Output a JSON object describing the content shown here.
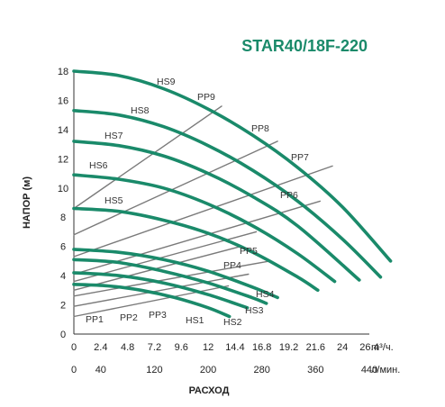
{
  "chart_data": {
    "type": "line",
    "title": "STAR40/18F-220",
    "ylabel": "НАПОР (м)",
    "xlabel": "РАСХОД",
    "x_unit_top": "m³/ч.",
    "x_unit_bottom": "л/мин.",
    "ylim": [
      0,
      18
    ],
    "yticks": [
      0,
      2,
      4,
      6,
      8,
      10,
      12,
      14,
      16,
      18
    ],
    "xlim": [
      0,
      26.4
    ],
    "xticks_top": [
      "0",
      "2.4",
      "4.8",
      "7.2",
      "9.6",
      "12",
      "14.4",
      "16.8",
      "19.2",
      "21.6",
      "24",
      "26.4"
    ],
    "xticks_bottom": [
      "0",
      "40",
      "120",
      "200",
      "280",
      "360",
      "440"
    ],
    "xticks_bottom_values": [
      0,
      2.4,
      7.2,
      12,
      16.8,
      21.6,
      26.4
    ],
    "grid": false,
    "colors": {
      "pump_curve": "#1a8a6a",
      "system_curve": "#7a7a7a",
      "title": "#1a8a6a",
      "text": "#222222"
    },
    "series": [
      {
        "name": "HS1",
        "kind": "pump",
        "x": [
          0,
          3,
          6,
          9,
          12,
          13.9
        ],
        "y": [
          3.4,
          3.3,
          3.0,
          2.5,
          1.8,
          1.2
        ]
      },
      {
        "name": "HS2",
        "kind": "pump",
        "x": [
          0,
          4,
          8,
          12,
          15.5
        ],
        "y": [
          4.2,
          4.0,
          3.5,
          2.7,
          1.8
        ]
      },
      {
        "name": "HS3",
        "kind": "pump",
        "x": [
          0,
          4,
          8,
          12,
          15.9,
          17.2
        ],
        "y": [
          5.1,
          4.9,
          4.3,
          3.5,
          2.5,
          2.1
        ]
      },
      {
        "name": "HS4",
        "kind": "pump",
        "x": [
          0,
          4,
          8,
          12,
          16,
          18.2
        ],
        "y": [
          5.8,
          5.6,
          5.1,
          4.3,
          3.2,
          2.5
        ]
      },
      {
        "name": "HS5",
        "kind": "pump",
        "x": [
          0,
          4,
          8,
          12,
          16,
          20,
          21.8
        ],
        "y": [
          8.6,
          8.4,
          7.8,
          6.9,
          5.6,
          3.9,
          3.0
        ]
      },
      {
        "name": "HS6",
        "kind": "pump",
        "x": [
          0,
          4,
          8,
          12,
          16,
          20,
          23.3
        ],
        "y": [
          10.9,
          10.6,
          10.0,
          8.9,
          7.4,
          5.5,
          3.6
        ]
      },
      {
        "name": "HS7",
        "kind": "pump",
        "x": [
          0,
          4,
          8,
          12,
          16,
          20,
          25.5
        ],
        "y": [
          13.2,
          12.9,
          12.2,
          11.0,
          9.4,
          7.4,
          3.7
        ]
      },
      {
        "name": "HS8",
        "kind": "pump",
        "x": [
          0,
          4,
          8,
          12,
          16,
          20,
          24,
          27.4
        ],
        "y": [
          15.3,
          15.0,
          14.2,
          12.9,
          11.2,
          9.1,
          6.5,
          3.9
        ]
      },
      {
        "name": "HS9",
        "kind": "pump",
        "x": [
          0,
          4,
          8,
          12,
          16,
          20,
          24,
          28.3
        ],
        "y": [
          18.0,
          17.7,
          16.8,
          15.4,
          13.6,
          11.4,
          8.7,
          5.0
        ]
      },
      {
        "name": "PP1",
        "kind": "system",
        "x": [
          0,
          13.8
        ],
        "y": [
          1.2,
          3.3
        ]
      },
      {
        "name": "PP2",
        "kind": "system",
        "x": [
          0,
          15.6
        ],
        "y": [
          1.9,
          4.1
        ]
      },
      {
        "name": "PP3",
        "kind": "system",
        "x": [
          0,
          17.5
        ],
        "y": [
          2.6,
          5.0
        ]
      },
      {
        "name": "PP4",
        "kind": "system",
        "x": [
          0,
          14.9
        ],
        "y": [
          3.0,
          6.0
        ]
      },
      {
        "name": "PP5",
        "kind": "system",
        "x": [
          0,
          16.3
        ],
        "y": [
          3.6,
          7.0
        ]
      },
      {
        "name": "PP6",
        "kind": "system",
        "x": [
          0,
          22.0
        ],
        "y": [
          4.1,
          9.1
        ]
      },
      {
        "name": "PP7",
        "kind": "system",
        "x": [
          0,
          23.1
        ],
        "y": [
          5.3,
          11.5
        ]
      },
      {
        "name": "PP8",
        "kind": "system",
        "x": [
          0,
          18.2
        ],
        "y": [
          6.8,
          13.2
        ]
      },
      {
        "name": "PP9",
        "kind": "system",
        "x": [
          0,
          13.2
        ],
        "y": [
          8.6,
          15.6
        ]
      }
    ]
  }
}
